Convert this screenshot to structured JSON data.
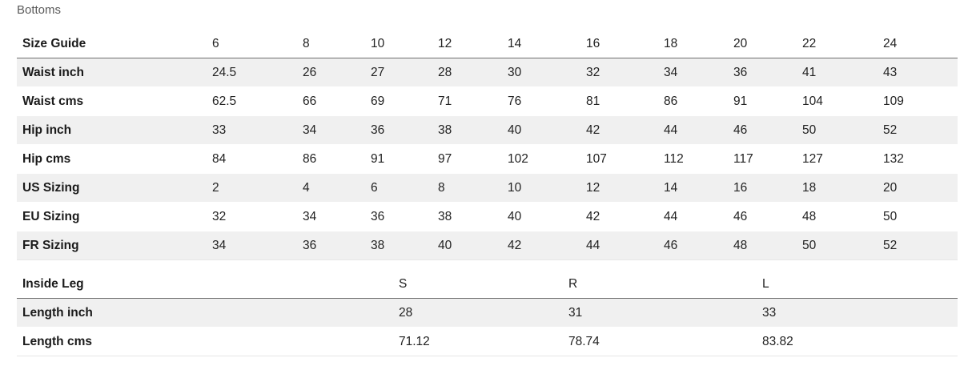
{
  "title": "Bottoms",
  "size_table": {
    "header": [
      "Size Guide",
      "6",
      "8",
      "10",
      "12",
      "14",
      "16",
      "18",
      "20",
      "22",
      "24"
    ],
    "rows": [
      [
        "Waist inch",
        "24.5",
        "26",
        "27",
        "28",
        "30",
        "32",
        "34",
        "36",
        "41",
        "43"
      ],
      [
        "Waist cms",
        "62.5",
        "66",
        "69",
        "71",
        "76",
        "81",
        "86",
        "91",
        "104",
        "109"
      ],
      [
        "Hip inch",
        "33",
        "34",
        "36",
        "38",
        "40",
        "42",
        "44",
        "46",
        "50",
        "52"
      ],
      [
        "Hip cms",
        "84",
        "86",
        "91",
        "97",
        "102",
        "107",
        "112",
        "117",
        "127",
        "132"
      ],
      [
        "US Sizing",
        "2",
        "4",
        "6",
        "8",
        "10",
        "12",
        "14",
        "16",
        "18",
        "20"
      ],
      [
        "EU Sizing",
        "32",
        "34",
        "36",
        "38",
        "40",
        "42",
        "44",
        "46",
        "48",
        "50"
      ],
      [
        "FR Sizing",
        "34",
        "36",
        "38",
        "40",
        "42",
        "44",
        "46",
        "48",
        "50",
        "52"
      ]
    ]
  },
  "leg_table": {
    "header": [
      "Inside Leg",
      "S",
      "R",
      "L"
    ],
    "rows": [
      [
        "Length inch",
        "28",
        "31",
        "33"
      ],
      [
        "Length cms",
        "71.12",
        "78.74",
        "83.82"
      ]
    ]
  }
}
